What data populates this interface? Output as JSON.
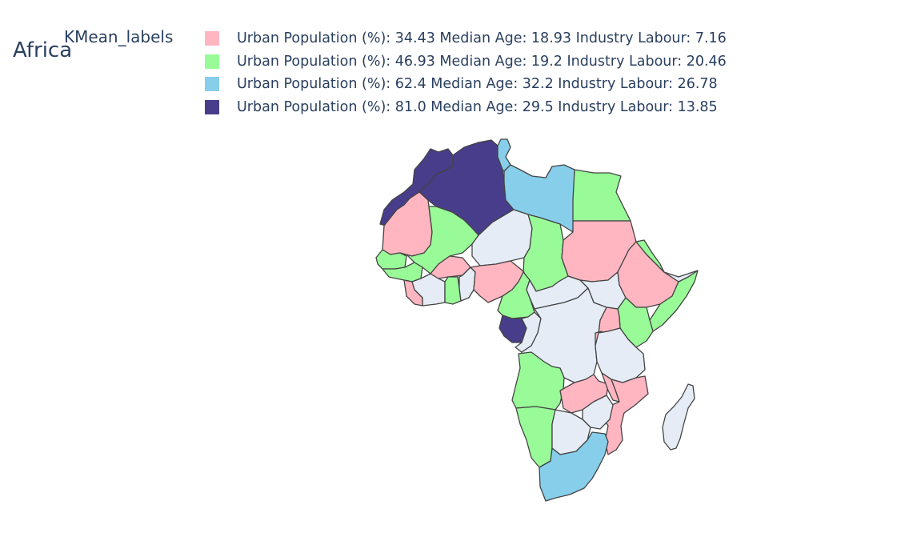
{
  "title": "Africa",
  "legend": {
    "title": "KMean_labels",
    "items": [
      {
        "label": "Urban Population (%): 34.43 Median Age: 18.93 Industry Labour: 7.16",
        "color": "#ffb6c1"
      },
      {
        "label": "Urban Population (%): 46.93 Median Age: 19.2 Industry Labour: 20.46",
        "color": "#98fb98"
      },
      {
        "label": "Urban Population (%): 62.4 Median Age: 32.2 Industry Labour: 26.78",
        "color": "#87ceeb"
      },
      {
        "label": "Urban Population (%): 81.0 Median Age: 29.5 Industry Labour: 13.85",
        "color": "#483d8b"
      }
    ]
  },
  "map_colors": {
    "no_data": "#e5ecf6",
    "border": "#444444"
  }
}
